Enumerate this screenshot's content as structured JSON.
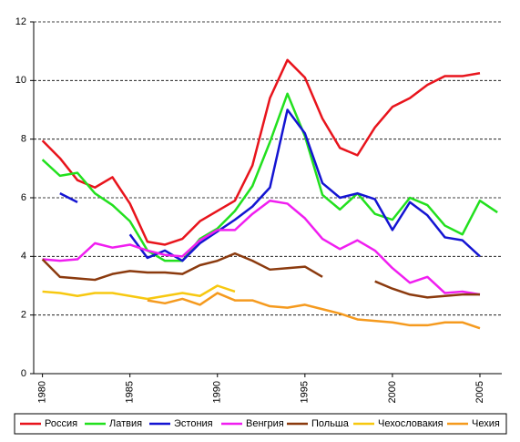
{
  "chart_data": {
    "type": "line",
    "x": [
      1980,
      1981,
      1982,
      1983,
      1984,
      1985,
      1986,
      1987,
      1988,
      1989,
      1990,
      1991,
      1992,
      1993,
      1994,
      1995,
      1996,
      1997,
      1998,
      1999,
      2000,
      2001,
      2002,
      2003,
      2004,
      2005,
      2006
    ],
    "xlim": [
      1979.5,
      2006.25
    ],
    "xticks": [
      1980,
      1985,
      1990,
      1995,
      2000,
      2005
    ],
    "ylim": [
      0,
      12
    ],
    "yticks": [
      0,
      2,
      4,
      6,
      8,
      10,
      12
    ],
    "grid": true,
    "legend": "bottom",
    "series": [
      {
        "name": "Россия",
        "color": "#e8141c",
        "values": [
          7.95,
          7.35,
          6.6,
          6.35,
          6.7,
          5.8,
          4.5,
          4.4,
          4.6,
          5.2,
          5.55,
          5.9,
          7.1,
          9.4,
          10.7,
          10.1,
          8.7,
          7.7,
          7.45,
          8.4,
          9.1,
          9.4,
          9.85,
          10.15,
          10.15,
          10.25,
          null
        ]
      },
      {
        "name": "Латвия",
        "color": "#22e01e",
        "values": [
          7.3,
          6.75,
          6.85,
          6.15,
          5.75,
          5.2,
          4.2,
          3.85,
          3.85,
          4.6,
          4.95,
          5.55,
          6.4,
          7.9,
          9.55,
          8.1,
          6.1,
          5.6,
          6.15,
          5.45,
          5.25,
          6.0,
          5.75,
          5.05,
          4.75,
          5.9,
          5.5
        ]
      },
      {
        "name": "Эстония",
        "color": "#1414d2",
        "values": [
          null,
          6.15,
          5.85,
          null,
          null,
          4.75,
          3.95,
          4.2,
          3.85,
          4.45,
          4.85,
          5.25,
          5.7,
          6.35,
          9.0,
          8.2,
          6.5,
          6.0,
          6.15,
          5.95,
          4.9,
          5.85,
          5.4,
          4.65,
          4.55,
          4.0,
          null
        ]
      },
      {
        "name": "Венгрия",
        "color": "#f01ef0",
        "values": [
          3.9,
          3.85,
          3.9,
          4.45,
          4.3,
          4.4,
          4.2,
          4.05,
          4.0,
          4.55,
          4.9,
          4.9,
          5.45,
          5.9,
          5.8,
          5.3,
          4.6,
          4.25,
          4.55,
          4.2,
          3.6,
          3.1,
          3.3,
          2.75,
          2.8,
          2.7,
          null
        ]
      },
      {
        "name": "Польша",
        "color": "#8b3a0e",
        "values": [
          3.9,
          3.3,
          3.25,
          3.2,
          3.4,
          3.5,
          3.45,
          3.45,
          3.4,
          3.7,
          3.85,
          4.1,
          3.85,
          3.55,
          3.6,
          3.65,
          3.3,
          null,
          null,
          3.15,
          2.9,
          2.7,
          2.6,
          2.65,
          2.7,
          2.7,
          null
        ]
      },
      {
        "name": "Чехословакия",
        "color": "#f7c810",
        "values": [
          2.8,
          2.75,
          2.65,
          2.75,
          2.75,
          2.65,
          2.55,
          2.65,
          2.75,
          2.65,
          3.0,
          2.8,
          null,
          null,
          null,
          null,
          null,
          null,
          null,
          null,
          null,
          null,
          null,
          null,
          null,
          null,
          null
        ]
      },
      {
        "name": "Чехия",
        "color": "#f59a1e",
        "values": [
          null,
          null,
          null,
          null,
          null,
          null,
          2.5,
          2.4,
          2.55,
          2.35,
          2.75,
          2.5,
          2.5,
          2.3,
          2.25,
          2.35,
          2.2,
          2.05,
          1.85,
          1.8,
          1.75,
          1.65,
          1.65,
          1.75,
          1.75,
          1.55,
          null
        ]
      }
    ]
  }
}
